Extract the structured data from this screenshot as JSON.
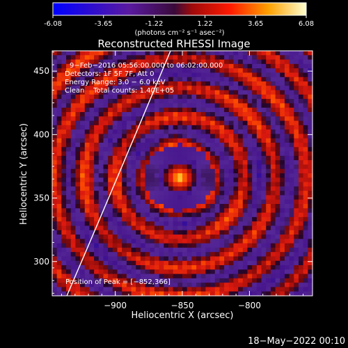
{
  "colorbar": {
    "ticks": [
      "-6.08",
      "-3.65",
      "-1.22",
      "1.22",
      "3.65",
      "6.08"
    ],
    "tick_values": [
      -6.08,
      -3.65,
      -1.22,
      1.22,
      3.65,
      6.08
    ],
    "range": [
      -6.08,
      6.08
    ],
    "units_label": "(photons cm⁻² s⁻¹ asec⁻²)"
  },
  "chart_data": {
    "type": "heatmap",
    "title": "Reconstructed RHESSI Image",
    "xlabel": "Heliocentric X (arcsec)",
    "ylabel": "Heliocentric Y (arcsec)",
    "xlim": [
      -947,
      -850
    ],
    "ylim": [
      273,
      466
    ],
    "x_ticks": [
      -900,
      -850,
      -800
    ],
    "x_tick_labels": [
      "−900",
      "−850",
      "−800"
    ],
    "y_ticks": [
      300,
      350,
      400,
      450
    ],
    "y_tick_labels": [
      "300",
      "350",
      "400",
      "450"
    ],
    "info_lines": [
      "9−Feb−2016 05:56:00.000 to 06:02:00.000",
      "Detectors: 1F 5F 7F, Att 0",
      "Energy Range: 3.0 − 6.0 keV",
      "Clean    Total counts: 1.40E+05"
    ],
    "peak": {
      "x": -852,
      "y": 366,
      "label": "Position of Peak = [−852,366]"
    },
    "colormap": "rhessi-3",
    "limb_line": true
  },
  "footer": {
    "timestamp": "18−May−2022 00:10"
  }
}
